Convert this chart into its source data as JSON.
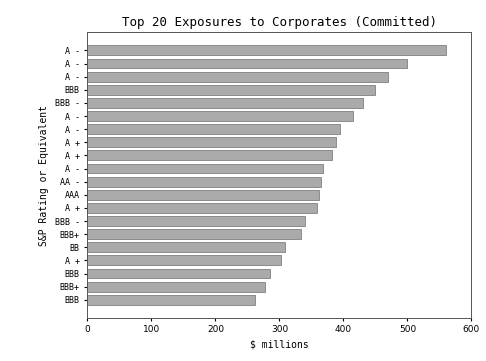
{
  "title": "Top 20 Exposures to Corporates (Committed)",
  "xlabel": "$ millions",
  "ylabel": "S&P Rating or Equivalent",
  "labels": [
    "A -",
    "A -",
    "A -",
    "BBB",
    "BBB -",
    "A -",
    "A -",
    "A +",
    "A +",
    "A -",
    "AA -",
    "AAA",
    "A +",
    "BBB -",
    "BBB+",
    "BB",
    "A +",
    "BBB",
    "BBB+",
    "BBB"
  ],
  "values": [
    560,
    500,
    470,
    450,
    430,
    415,
    395,
    388,
    382,
    368,
    365,
    362,
    358,
    340,
    333,
    308,
    302,
    285,
    277,
    262
  ],
  "bar_color": "#aaaaaa",
  "bar_edgecolor": "#555555",
  "xlim": [
    0,
    600
  ],
  "xticks": [
    0,
    100,
    200,
    300,
    400,
    500,
    600
  ],
  "background_color": "#ffffff",
  "title_fontsize": 9,
  "label_fontsize": 6,
  "tick_fontsize": 6.5,
  "xlabel_fontsize": 7,
  "ylabel_fontsize": 7
}
